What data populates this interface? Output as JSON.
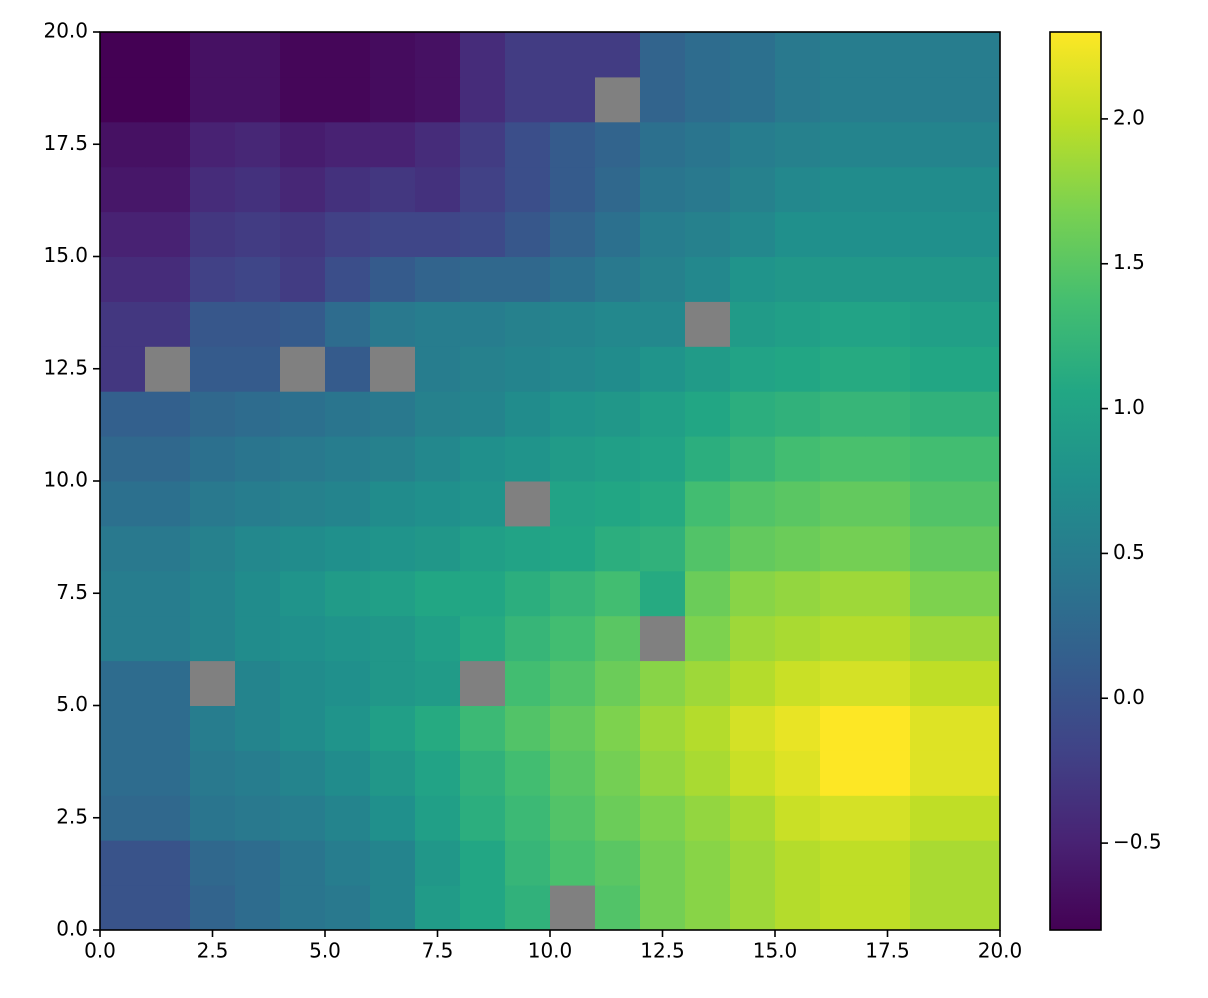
{
  "chart_data": {
    "type": "heatmap",
    "colormap": "viridis",
    "nan_color": "#808080",
    "xlim": [
      0,
      20
    ],
    "ylim": [
      0,
      20
    ],
    "xticks": [
      {
        "value": 0,
        "label": "0.0"
      },
      {
        "value": 2.5,
        "label": "2.5"
      },
      {
        "value": 5,
        "label": "5.0"
      },
      {
        "value": 7.5,
        "label": "7.5"
      },
      {
        "value": 10,
        "label": "10.0"
      },
      {
        "value": 12.5,
        "label": "12.5"
      },
      {
        "value": 15,
        "label": "15.0"
      },
      {
        "value": 17.5,
        "label": "17.5"
      },
      {
        "value": 20,
        "label": "20.0"
      }
    ],
    "yticks": [
      {
        "value": 0,
        "label": "0.0"
      },
      {
        "value": 2.5,
        "label": "2.5"
      },
      {
        "value": 5,
        "label": "5.0"
      },
      {
        "value": 7.5,
        "label": "7.5"
      },
      {
        "value": 10,
        "label": "10.0"
      },
      {
        "value": 12.5,
        "label": "12.5"
      },
      {
        "value": 15,
        "label": "15.0"
      },
      {
        "value": 17.5,
        "label": "17.5"
      },
      {
        "value": 20,
        "label": "20.0"
      }
    ],
    "clim": [
      -0.8,
      2.3
    ],
    "cticks": [
      {
        "value": -0.5,
        "label": "−0.5"
      },
      {
        "value": 0,
        "label": "0.0"
      },
      {
        "value": 0.5,
        "label": "0.5"
      },
      {
        "value": 1,
        "label": "1.0"
      },
      {
        "value": 1.5,
        "label": "1.5"
      },
      {
        "value": 2,
        "label": "2.0"
      }
    ],
    "z": [
      [
        0.0,
        0.0,
        0.2,
        0.3,
        0.4,
        0.45,
        0.6,
        0.9,
        1.05,
        1.2,
        null,
        1.45,
        1.65,
        1.75,
        1.85,
        1.95,
        2.0,
        2.0,
        1.9,
        1.9
      ],
      [
        0.0,
        0.0,
        0.25,
        0.3,
        0.4,
        0.5,
        0.6,
        0.85,
        1.05,
        1.25,
        1.4,
        1.5,
        1.65,
        1.75,
        1.85,
        1.95,
        2.0,
        2.0,
        1.9,
        1.9
      ],
      [
        0.25,
        0.25,
        0.4,
        0.45,
        0.5,
        0.6,
        0.75,
        0.95,
        1.15,
        1.3,
        1.45,
        1.6,
        1.7,
        1.8,
        1.9,
        2.05,
        2.1,
        2.1,
        2.0,
        2.0
      ],
      [
        0.3,
        0.3,
        0.45,
        0.5,
        0.6,
        0.7,
        0.85,
        1.0,
        1.2,
        1.35,
        1.5,
        1.65,
        1.8,
        1.9,
        2.05,
        2.15,
        2.3,
        2.3,
        2.15,
        2.15
      ],
      [
        0.3,
        0.3,
        0.5,
        0.6,
        0.7,
        0.8,
        0.95,
        1.1,
        1.3,
        1.45,
        1.55,
        1.7,
        1.85,
        1.95,
        2.1,
        2.2,
        2.3,
        2.3,
        2.15,
        2.15
      ],
      [
        0.3,
        0.3,
        null,
        0.6,
        0.7,
        0.75,
        0.85,
        0.9,
        null,
        1.35,
        1.45,
        1.6,
        1.75,
        1.85,
        1.95,
        2.05,
        2.1,
        2.1,
        2.0,
        2.0
      ],
      [
        0.5,
        0.5,
        0.6,
        0.7,
        0.75,
        0.8,
        0.85,
        0.95,
        1.1,
        1.25,
        1.35,
        1.5,
        null,
        1.7,
        1.85,
        1.9,
        1.95,
        1.95,
        1.85,
        1.85
      ],
      [
        0.5,
        0.5,
        0.6,
        0.7,
        0.8,
        0.9,
        0.95,
        1.05,
        1.05,
        1.15,
        1.25,
        1.35,
        1.1,
        1.6,
        1.75,
        1.8,
        1.85,
        1.85,
        1.7,
        1.7
      ],
      [
        0.45,
        0.45,
        0.55,
        0.65,
        0.7,
        0.75,
        0.8,
        0.85,
        0.95,
        1.0,
        1.05,
        1.15,
        1.2,
        1.45,
        1.55,
        1.6,
        1.65,
        1.65,
        1.55,
        1.55
      ],
      [
        0.35,
        0.35,
        0.45,
        0.5,
        0.55,
        0.6,
        0.7,
        0.75,
        0.8,
        null,
        1.0,
        1.05,
        1.1,
        1.35,
        1.45,
        1.5,
        1.55,
        1.55,
        1.45,
        1.45
      ],
      [
        0.25,
        0.25,
        0.35,
        0.4,
        0.45,
        0.5,
        0.55,
        0.65,
        0.75,
        0.8,
        0.9,
        0.95,
        1.0,
        1.15,
        1.25,
        1.35,
        1.4,
        1.4,
        1.35,
        1.35
      ],
      [
        0.15,
        0.15,
        0.25,
        0.3,
        0.35,
        0.4,
        0.45,
        0.55,
        0.6,
        0.7,
        0.8,
        0.85,
        0.95,
        1.05,
        1.15,
        1.2,
        1.25,
        1.25,
        1.2,
        1.2
      ],
      [
        -0.3,
        null,
        0.1,
        0.1,
        null,
        0.1,
        null,
        0.5,
        0.55,
        0.6,
        0.65,
        0.7,
        0.8,
        0.9,
        1.0,
        1.05,
        1.1,
        1.1,
        1.05,
        1.05
      ],
      [
        -0.3,
        -0.3,
        0.05,
        0.05,
        0.1,
        0.3,
        0.45,
        0.5,
        0.5,
        0.55,
        0.6,
        0.65,
        0.65,
        null,
        0.9,
        0.95,
        1.0,
        1.0,
        0.95,
        0.95
      ],
      [
        -0.4,
        -0.4,
        -0.2,
        -0.15,
        -0.25,
        -0.05,
        0.1,
        0.2,
        0.25,
        0.25,
        0.35,
        0.45,
        0.55,
        0.65,
        0.8,
        0.85,
        0.85,
        0.85,
        0.85,
        0.85
      ],
      [
        -0.5,
        -0.5,
        -0.3,
        -0.25,
        -0.3,
        -0.2,
        -0.15,
        -0.15,
        -0.1,
        0.05,
        0.2,
        0.35,
        0.5,
        0.55,
        0.65,
        0.75,
        0.75,
        0.75,
        0.75,
        0.75
      ],
      [
        -0.6,
        -0.6,
        -0.4,
        -0.35,
        -0.45,
        -0.35,
        -0.3,
        -0.35,
        -0.2,
        -0.05,
        0.1,
        0.25,
        0.4,
        0.45,
        0.55,
        0.65,
        0.7,
        0.7,
        0.7,
        0.7
      ],
      [
        -0.65,
        -0.65,
        -0.5,
        -0.45,
        -0.55,
        -0.5,
        -0.5,
        -0.4,
        -0.25,
        -0.05,
        0.1,
        0.2,
        0.35,
        0.4,
        0.5,
        0.55,
        0.6,
        0.6,
        0.6,
        0.6
      ],
      [
        -0.8,
        -0.8,
        -0.65,
        -0.65,
        -0.75,
        -0.75,
        -0.7,
        -0.65,
        -0.4,
        -0.25,
        -0.25,
        null,
        0.2,
        0.3,
        0.35,
        0.45,
        0.5,
        0.5,
        0.5,
        0.5
      ],
      [
        -0.8,
        -0.8,
        -0.65,
        -0.65,
        -0.75,
        -0.75,
        -0.7,
        -0.65,
        -0.4,
        -0.25,
        -0.25,
        -0.25,
        0.2,
        0.3,
        0.35,
        0.45,
        0.5,
        0.5,
        0.5,
        0.5
      ]
    ]
  }
}
